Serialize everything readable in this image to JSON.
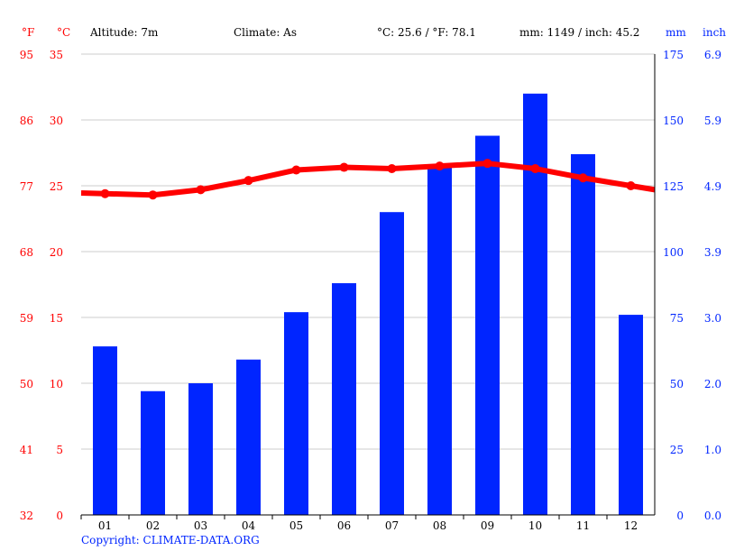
{
  "header": {
    "unit_f": "°F",
    "unit_c": "°C",
    "altitude": "Altitude: 7m",
    "climate": "Climate: As",
    "temp_avg": "°C: 25.6 / °F: 78.1",
    "precip_total": "mm: 1149 / inch: 45.2",
    "unit_mm": "mm",
    "unit_inch": "inch"
  },
  "copyright": "Copyright: CLIMATE-DATA.ORG",
  "colors": {
    "temp": "#ff0000",
    "precip": "#0025ff",
    "grid": "#cccccc"
  },
  "chart_data": {
    "type": "bar+line",
    "categories": [
      "01",
      "02",
      "03",
      "04",
      "05",
      "06",
      "07",
      "08",
      "09",
      "10",
      "11",
      "12"
    ],
    "series": [
      {
        "name": "mm",
        "type": "bar",
        "axis": "right",
        "values": [
          64,
          47,
          50,
          59,
          77,
          88,
          115,
          132,
          144,
          160,
          137,
          76
        ]
      },
      {
        "name": "°C",
        "type": "line",
        "axis": "left",
        "values": [
          24.4,
          24.3,
          24.7,
          25.4,
          26.2,
          26.4,
          26.3,
          26.5,
          26.7,
          26.3,
          25.6,
          25.0
        ]
      }
    ],
    "y_left_c": {
      "ticks": [
        0,
        5,
        10,
        15,
        20,
        25,
        30,
        35
      ],
      "range": [
        0,
        35
      ]
    },
    "y_left_f": {
      "ticks": [
        "32",
        "41",
        "50",
        "59",
        "68",
        "77",
        "86",
        "95"
      ]
    },
    "y_right_mm": {
      "ticks": [
        0,
        25,
        50,
        75,
        100,
        125,
        150,
        175
      ],
      "range": [
        0,
        175
      ]
    },
    "y_right_inch": {
      "ticks": [
        "0.0",
        "1.0",
        "2.0",
        "3.0",
        "3.9",
        "4.9",
        "5.9",
        "6.9"
      ]
    },
    "grid": true
  }
}
